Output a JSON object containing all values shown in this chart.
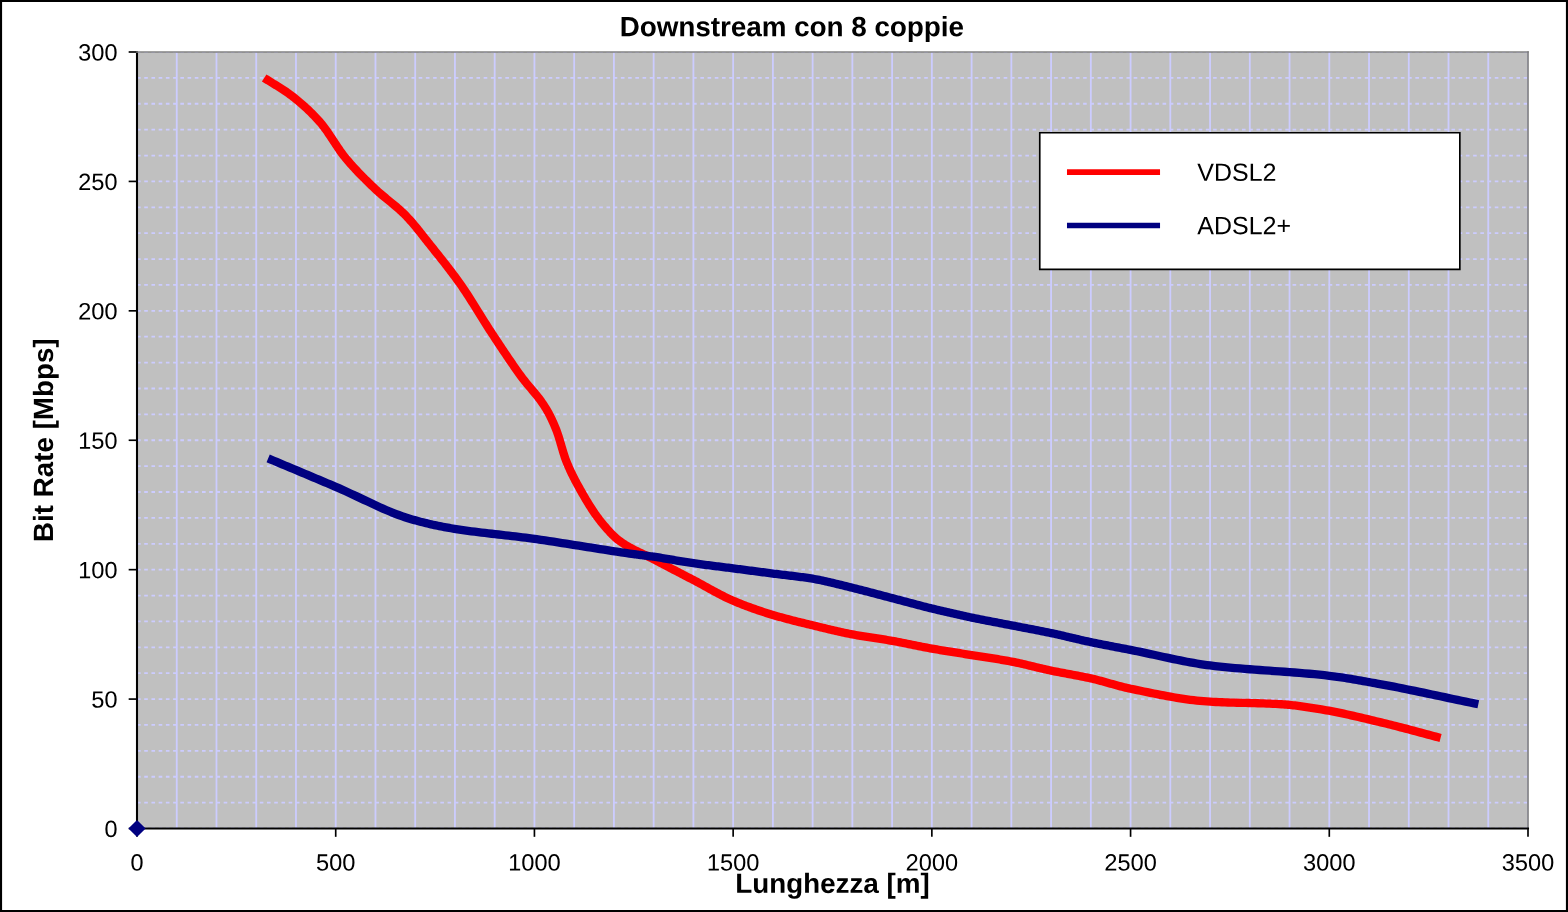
{
  "chart_data": {
    "type": "line",
    "title": "Downstream con 8 coppie",
    "xlabel": "Lunghezza [m]",
    "ylabel": "Bit Rate [Mbps]",
    "xlim": [
      0,
      3500
    ],
    "ylim": [
      0,
      300
    ],
    "xticks": [
      0,
      500,
      1000,
      1500,
      2000,
      2500,
      3000,
      3500
    ],
    "yticks": [
      0,
      50,
      100,
      150,
      200,
      250,
      300
    ],
    "grid": true,
    "legend": "top right",
    "line_style": "solid",
    "marker": "none",
    "series": [
      {
        "name": "VDSL2",
        "color": "#ff0000",
        "x": [
          320,
          390,
          460,
          525,
          600,
          675,
          740,
          815,
          890,
          965,
          1030,
          1055,
          1080,
          1115,
          1165,
          1215,
          1300,
          1400,
          1500,
          1600,
          1700,
          1800,
          1900,
          2000,
          2100,
          2200,
          2300,
          2400,
          2500,
          2700,
          2880,
          2980,
          3130,
          3280
        ],
        "values": [
          290,
          283,
          273,
          259,
          247,
          237,
          225,
          210,
          192,
          175,
          162,
          154,
          142,
          131,
          119,
          111,
          104,
          96,
          88,
          82.5,
          78.5,
          75,
          72.5,
          69.5,
          67,
          64.5,
          61,
          58,
          54,
          49,
          48,
          46,
          41,
          35
        ]
      },
      {
        "name": "ADSL2+",
        "color": "#000080",
        "x": [
          330,
          500,
          690,
          790,
          995,
          1250,
          1300,
          1400,
          1500,
          1600,
          1700,
          1800,
          1900,
          2000,
          2100,
          2200,
          2300,
          2400,
          2500,
          2700,
          3000,
          3120,
          3375
        ],
        "values": [
          143,
          132,
          119.5,
          116,
          112,
          106,
          105,
          102.5,
          100.5,
          98.5,
          96.5,
          93,
          89,
          85,
          81.5,
          78.5,
          75.5,
          72,
          69,
          63,
          59,
          56,
          48
        ]
      },
      {
        "type": "scatter",
        "marker": "diamond",
        "color": "#000080",
        "x": [
          0
        ],
        "values": [
          0
        ]
      }
    ]
  }
}
